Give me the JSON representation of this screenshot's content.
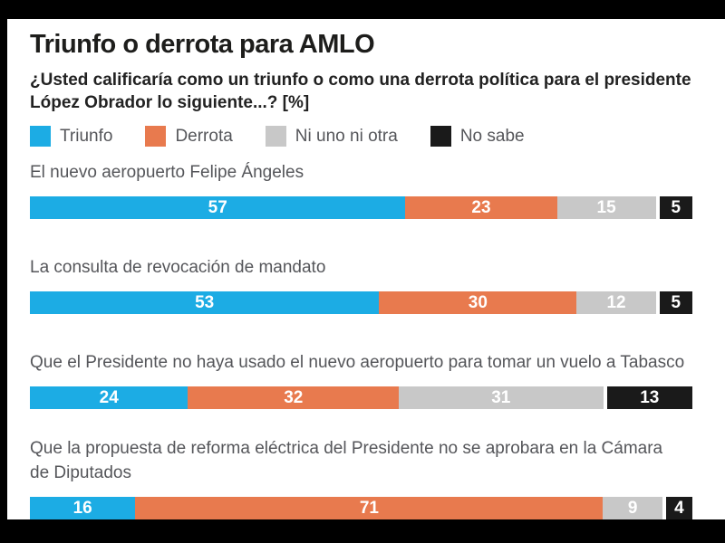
{
  "frame": {
    "letterbox_color": "#000000",
    "canvas_color": "#ffffff"
  },
  "header": {
    "title": "Triunfo o derrota para AMLO",
    "subtitle": "¿Usted calificaría como un triunfo o como una derrota política para el presidente\nLópez Obrador lo siguiente...? [%]"
  },
  "legend": [
    {
      "label": "Triunfo",
      "color": "#1cace4"
    },
    {
      "label": "Derrota",
      "color": "#e87a4e"
    },
    {
      "label": "Ni uno ni otra",
      "color": "#c8c8c8"
    },
    {
      "label": "No sabe",
      "color": "#1a1a1a"
    }
  ],
  "chart_data": {
    "type": "bar",
    "variant": "stacked-horizontal-100pct",
    "unit": "%",
    "title": "Triunfo o derrota para AMLO",
    "question": "¿Usted calificaría como un triunfo o como una derrota política para el presidente López Obrador lo siguiente...? [%]",
    "series_names": [
      "Triunfo",
      "Derrota",
      "Ni uno ni otra",
      "No sabe"
    ],
    "series_colors": [
      "#1cace4",
      "#e87a4e",
      "#c8c8c8",
      "#1a1a1a"
    ],
    "value_label_color": "#ffffff",
    "legend_position": "top",
    "grid": false,
    "xlim": [
      0,
      100
    ],
    "rows": [
      {
        "label": "El nuevo aeropuerto Felipe Ángeles",
        "values": [
          57,
          23,
          15,
          5
        ]
      },
      {
        "label": "La consulta de revocación de mandato",
        "values": [
          53,
          30,
          12,
          5
        ]
      },
      {
        "label": "Que el Presidente no haya usado el nuevo aeropuerto para tomar un vuelo a Tabasco",
        "values": [
          24,
          32,
          31,
          13
        ]
      },
      {
        "label": "Que la propuesta de reforma eléctrica del Presidente no se aprobara en la Cámara\nde Diputados",
        "values": [
          16,
          71,
          9,
          4
        ]
      }
    ]
  }
}
